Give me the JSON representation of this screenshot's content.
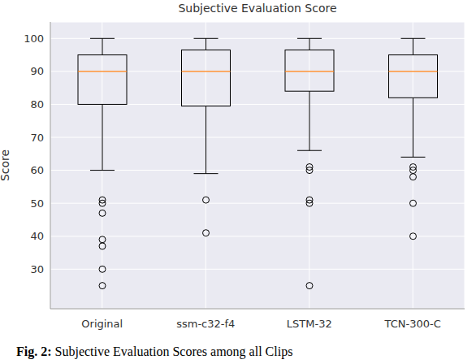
{
  "chart_data": {
    "type": "box",
    "title": "Subjective Evaluation Score",
    "y_label": "Score",
    "caption": "Fig. 2: Subjective Evaluation Scores among all Clips",
    "categories": [
      "Original",
      "ssm-c32-f4",
      "LSTM-32",
      "TCN-300-C"
    ],
    "boxes": [
      {
        "min": 60,
        "q1": 80,
        "median": 90,
        "q3": 95,
        "max": 100,
        "outliers": [
          51,
          50,
          47,
          39,
          37,
          30,
          25
        ]
      },
      {
        "min": 59,
        "q1": 79.5,
        "median": 90,
        "q3": 96.5,
        "max": 100,
        "outliers": [
          51,
          41
        ]
      },
      {
        "min": 66,
        "q1": 84,
        "median": 90,
        "q3": 96.5,
        "max": 100,
        "outliers": [
          61,
          60,
          51,
          50,
          25
        ]
      },
      {
        "min": 64,
        "q1": 82,
        "median": 90,
        "q3": 95,
        "max": 100,
        "outliers": [
          61,
          60,
          58,
          50,
          40
        ]
      }
    ],
    "color": "#000000",
    "ylim": [
      18,
      105
    ],
    "yticks": [
      30,
      40,
      50,
      60,
      70,
      80,
      90,
      100
    ],
    "grid": true
  }
}
